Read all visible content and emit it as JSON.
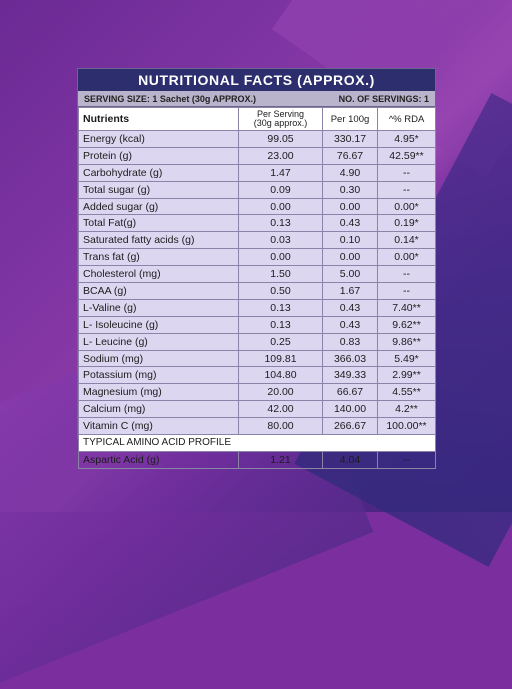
{
  "title": "NUTRITIONAL FACTS (APPROX.)",
  "serving_size": "SERVING SIZE: 1 Sachet (30g APPROX.)",
  "servings": "NO. OF SERVINGS: 1",
  "headers": {
    "nutrients": "Nutrients",
    "per_serving_line1": "Per Serving",
    "per_serving_line2": "(30g approx.)",
    "per_100g": "Per 100g",
    "rda": "^% RDA"
  },
  "rows": [
    {
      "name": "Energy (kcal)",
      "serving": "99.05",
      "per100": "330.17",
      "rda": "4.95*"
    },
    {
      "name": "Protein (g)",
      "serving": "23.00",
      "per100": "76.67",
      "rda": "42.59**"
    },
    {
      "name": "Carbohydrate (g)",
      "serving": "1.47",
      "per100": "4.90",
      "rda": "--"
    },
    {
      "name": "Total sugar (g)",
      "serving": "0.09",
      "per100": "0.30",
      "rda": "--"
    },
    {
      "name": "Added sugar (g)",
      "serving": "0.00",
      "per100": "0.00",
      "rda": "0.00*"
    },
    {
      "name": "Total Fat(g)",
      "serving": "0.13",
      "per100": "0.43",
      "rda": "0.19*"
    },
    {
      "name": "Saturated fatty acids (g)",
      "serving": "0.03",
      "per100": "0.10",
      "rda": "0.14*"
    },
    {
      "name": "Trans fat (g)",
      "serving": "0.00",
      "per100": "0.00",
      "rda": "0.00*"
    },
    {
      "name": "Cholesterol (mg)",
      "serving": "1.50",
      "per100": "5.00",
      "rda": "--"
    },
    {
      "name": "BCAA (g)",
      "serving": "0.50",
      "per100": "1.67",
      "rda": "--"
    },
    {
      "name": "L-Valine (g)",
      "serving": "0.13",
      "per100": "0.43",
      "rda": "7.40**"
    },
    {
      "name": "L- Isoleucine (g)",
      "serving": "0.13",
      "per100": "0.43",
      "rda": "9.62**"
    },
    {
      "name": "L- Leucine (g)",
      "serving": "0.25",
      "per100": "0.83",
      "rda": "9.86**"
    },
    {
      "name": "Sodium (mg)",
      "serving": "109.81",
      "per100": "366.03",
      "rda": "5.49*"
    },
    {
      "name": "Potassium (mg)",
      "serving": "104.80",
      "per100": "349.33",
      "rda": "2.99**"
    },
    {
      "name": "Magnesium (mg)",
      "serving": "20.00",
      "per100": "66.67",
      "rda": "4.55**"
    },
    {
      "name": "Calcium (mg)",
      "serving": "42.00",
      "per100": "140.00",
      "rda": "4.2**"
    },
    {
      "name": "Vitamin C (mg)",
      "serving": "80.00",
      "per100": "266.67",
      "rda": "100.00**"
    }
  ],
  "section_title": "TYPICAL AMINO ACID PROFILE",
  "amino_rows": [
    {
      "name": "Aspartic Acid (g)",
      "serving": "1.21",
      "per100": "4.04",
      "rda": "--"
    }
  ]
}
